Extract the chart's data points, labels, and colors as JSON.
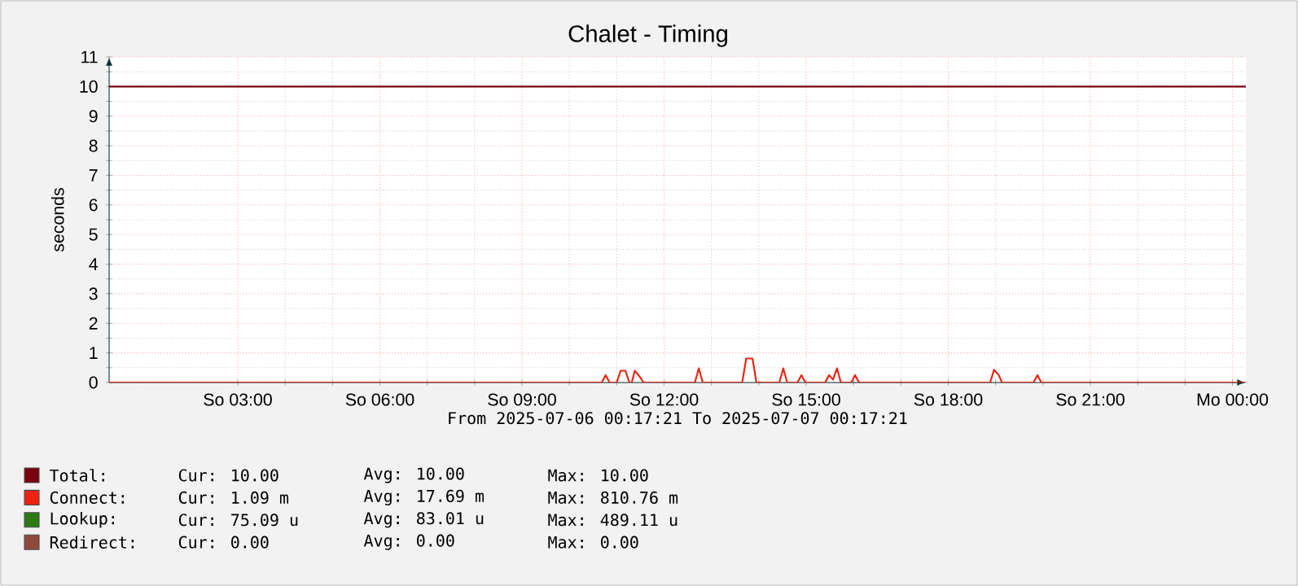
{
  "chart_data": {
    "type": "line",
    "title": "Chalet - Timing",
    "ylabel": "seconds",
    "xlabel": "From 2025-07-06 00:17:21 To 2025-07-07 00:17:21",
    "xlim": [
      "2025-07-06T00:17",
      "2025-07-07T00:17"
    ],
    "ylim": [
      0,
      11
    ],
    "xticks": [
      {
        "value": "2025-07-06T03:00",
        "label": "So 03:00"
      },
      {
        "value": "2025-07-06T06:00",
        "label": "So 06:00"
      },
      {
        "value": "2025-07-06T09:00",
        "label": "So 09:00"
      },
      {
        "value": "2025-07-06T12:00",
        "label": "So 12:00"
      },
      {
        "value": "2025-07-06T15:00",
        "label": "So 15:00"
      },
      {
        "value": "2025-07-06T18:00",
        "label": "So 18:00"
      },
      {
        "value": "2025-07-06T21:00",
        "label": "So 21:00"
      },
      {
        "value": "2025-07-07T00:00",
        "label": "Mo 00:00"
      }
    ],
    "yticks": [
      0,
      1,
      2,
      3,
      4,
      5,
      6,
      7,
      8,
      9,
      10,
      11
    ],
    "grid": true,
    "legend": "bottom",
    "marker": "none",
    "line_style": "solid",
    "series": [
      {
        "name": "Total:",
        "color": "#7a0010",
        "x": [
          "2025-07-06T00:17",
          "2025-07-07T00:17"
        ],
        "values": [
          10,
          10
        ]
      },
      {
        "name": "Connect:",
        "color": "#ee2211",
        "x": [
          "2025-07-06T00:17",
          "2025-07-06T10:41",
          "2025-07-06T10:46",
          "2025-07-06T10:51",
          "2025-07-06T11:00",
          "2025-07-06T11:05",
          "2025-07-06T11:11",
          "2025-07-06T11:16",
          "2025-07-06T11:19",
          "2025-07-06T11:23",
          "2025-07-06T11:29",
          "2025-07-06T11:34",
          "2025-07-06T12:39",
          "2025-07-06T12:44",
          "2025-07-06T12:49",
          "2025-07-06T13:39",
          "2025-07-06T13:44",
          "2025-07-06T13:52",
          "2025-07-06T13:57",
          "2025-07-06T14:26",
          "2025-07-06T14:31",
          "2025-07-06T14:36",
          "2025-07-06T14:49",
          "2025-07-06T14:54",
          "2025-07-06T14:59",
          "2025-07-06T15:24",
          "2025-07-06T15:29",
          "2025-07-06T15:34",
          "2025-07-06T15:39",
          "2025-07-06T15:44",
          "2025-07-06T15:57",
          "2025-07-06T16:02",
          "2025-07-06T16:07",
          "2025-07-06T18:53",
          "2025-07-06T18:58",
          "2025-07-06T19:04",
          "2025-07-06T19:08",
          "2025-07-06T19:48",
          "2025-07-06T19:53",
          "2025-07-06T19:58",
          "2025-07-07T00:17"
        ],
        "values": [
          0,
          0,
          0.25,
          0,
          0,
          0.4,
          0.4,
          0,
          0,
          0.4,
          0.2,
          0,
          0,
          0.48,
          0,
          0,
          0.81,
          0.81,
          0,
          0,
          0.48,
          0,
          0,
          0.25,
          0,
          0,
          0.25,
          0.1,
          0.48,
          0,
          0,
          0.25,
          0,
          0,
          0.43,
          0.25,
          0,
          0,
          0.25,
          0,
          0
        ]
      },
      {
        "name": "Lookup:",
        "color": "#2b7a16"
      },
      {
        "name": "Redirect:",
        "color": "#8d4a3a"
      }
    ],
    "annotations": [
      "Cur: 10.00",
      "Avg: 10.00",
      "Max: 10.00",
      "Cur: 1.09 m",
      "Avg: 17.69 m",
      "Max: 810.76 m",
      "Cur: 75.09 u",
      "Avg: 83.01 u",
      "Max: 489.11 u",
      "Cur: 0.00",
      "Avg: 0.00",
      "Max: 0.00"
    ]
  }
}
